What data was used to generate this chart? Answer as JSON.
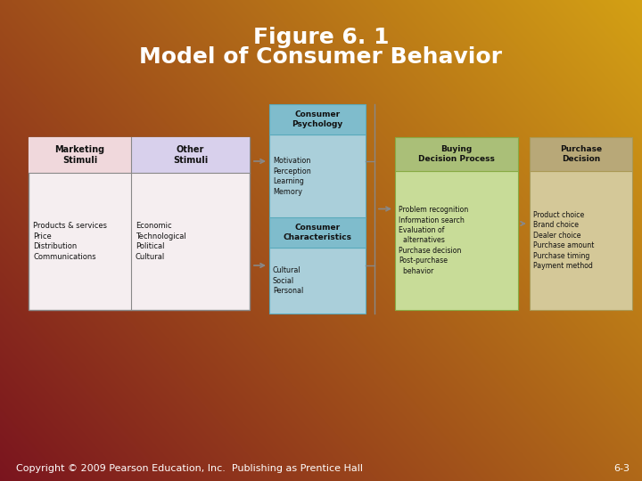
{
  "title_line1": "Figure 6. 1",
  "title_line2": "Model of Consumer Behavior",
  "title_color": "#FFFFFF",
  "title_fontsize": 18,
  "footer_text": "Copyright © 2009 Pearson Education, Inc.  Publishing as Prentice Hall",
  "footer_right": "6-3",
  "footer_color": "#FFFFFF",
  "footer_fontsize": 8,
  "box_marketing_header": "Marketing\nStimuli",
  "box_marketing_items": "Products & services\nPrice\nDistribution\nCommunications",
  "box_other_header": "Other\nStimuli",
  "box_other_items": "Economic\nTechnological\nPolitical\nCultural",
  "box_psych_header": "Consumer\nPsychology",
  "box_psych_items": "Motivation\nPerception\nLearning\nMemory",
  "box_char_header": "Consumer\nCharacteristics",
  "box_char_items": "Cultural\nSocial\nPersonal",
  "box_buying_header": "Buying\nDecision Process",
  "box_buying_items": "Problem recognition\nInformation search\nEvaluation of\n  alternatives\nPurchase decision\nPost-purchase\n  behavior",
  "box_purchase_header": "Purchase\nDecision",
  "box_purchase_items": "Product choice\nBrand choice\nDealer choice\nPurchase amount\nPurchase timing\nPayment method",
  "color_marketing_header": "#F0DEDE",
  "color_marketing_body": "#F5EEF0",
  "color_other_header": "#D8D0EC",
  "color_other_body": "#EAE4F5",
  "color_psych_header": "#7FBCCC",
  "color_psych_body": "#AACFDA",
  "color_char_header": "#7FBCCC",
  "color_char_body": "#AACFDA",
  "color_buying_header": "#AABF78",
  "color_buying_body": "#C8DC98",
  "color_purchase_header": "#B8A878",
  "color_purchase_body": "#D4C898",
  "header_fontsize": 6.5,
  "body_fontsize": 5.8,
  "box_text_color": "#111111",
  "bg_colors": [
    "#7A1520",
    "#8B2510",
    "#A04010",
    "#B86010",
    "#C88010",
    "#D4A020"
  ],
  "arrow_color": "#888888"
}
